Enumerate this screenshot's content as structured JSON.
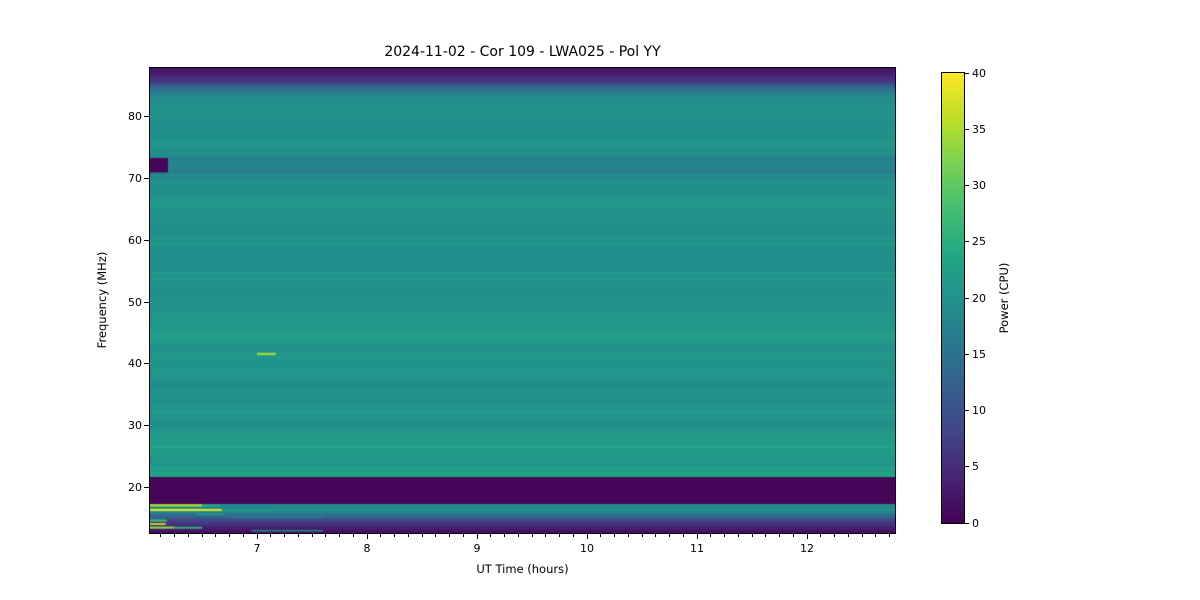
{
  "title": "2024-11-02 - Cor 109 - LWA025 - Pol YY",
  "xlabel": "UT Time (hours)",
  "ylabel": "Frequency (MHz)",
  "axes": {
    "x_min": 6.027,
    "x_max": 12.8,
    "y_min": 12.6,
    "y_max": 87.9,
    "x_major_ticks": [
      7,
      8,
      9,
      10,
      11,
      12
    ],
    "x_minor_step": 0.125,
    "y_major_ticks": [
      20,
      30,
      40,
      50,
      60,
      70,
      80
    ]
  },
  "colorbar": {
    "label": "Power (CPU)",
    "min": 0,
    "max": 40,
    "ticks": [
      0,
      5,
      10,
      15,
      20,
      25,
      30,
      35,
      40
    ]
  },
  "chart_data": {
    "type": "heatmap",
    "title": "2024-11-02 - Cor 109 - LWA025 - Pol YY",
    "xlabel": "UT Time (hours)",
    "ylabel": "Frequency (MHz)",
    "x_range_hours": [
      6.027,
      12.8
    ],
    "y_range_mhz": [
      12.6,
      87.9
    ],
    "value_label": "Power (CPU)",
    "value_range": [
      0,
      40
    ],
    "colormap": "viridis",
    "colormap_stops": [
      [
        0.0,
        "#440154"
      ],
      [
        0.1,
        "#482475"
      ],
      [
        0.2,
        "#414487"
      ],
      [
        0.3,
        "#355f8d"
      ],
      [
        0.4,
        "#2a788e"
      ],
      [
        0.5,
        "#21918c"
      ],
      [
        0.6,
        "#22a884"
      ],
      [
        0.7,
        "#44bf70"
      ],
      [
        0.8,
        "#7ad151"
      ],
      [
        0.9,
        "#bddf26"
      ],
      [
        1.0,
        "#fde725"
      ]
    ],
    "background_profile": [
      {
        "f0": 87.0,
        "f1": 87.9,
        "v0": 3.0,
        "v1": 1.5
      },
      {
        "f0": 85.7,
        "f1": 87.0,
        "v0": 7.0,
        "v1": 3.0
      },
      {
        "f0": 84.4,
        "f1": 85.7,
        "v0": 15.0,
        "v1": 7.0
      },
      {
        "f0": 83.2,
        "f1": 84.4,
        "v0": 19.3,
        "v1": 15.0
      },
      {
        "f0": 80.5,
        "f1": 83.2,
        "v0": 20.4,
        "v1": 19.3
      },
      {
        "f0": 78.5,
        "f1": 80.5,
        "v0": 19.3,
        "v1": 20.4
      },
      {
        "f0": 76.0,
        "f1": 78.5,
        "v0": 20.8,
        "v1": 19.3
      },
      {
        "f0": 73.5,
        "f1": 76.0,
        "v0": 19.5,
        "v1": 20.8
      },
      {
        "f0": 70.8,
        "f1": 73.5,
        "v0": 17.6,
        "v1": 17.6
      },
      {
        "f0": 68.5,
        "f1": 70.8,
        "v0": 19.8,
        "v1": 19.0
      },
      {
        "f0": 65.5,
        "f1": 68.5,
        "v0": 21.0,
        "v1": 19.8
      },
      {
        "f0": 62.5,
        "f1": 65.5,
        "v0": 19.6,
        "v1": 21.0
      },
      {
        "f0": 59.5,
        "f1": 62.5,
        "v0": 20.6,
        "v1": 19.6
      },
      {
        "f0": 57.0,
        "f1": 59.5,
        "v0": 19.2,
        "v1": 20.6
      },
      {
        "f0": 54.0,
        "f1": 57.0,
        "v0": 20.6,
        "v1": 19.2
      },
      {
        "f0": 51.0,
        "f1": 54.0,
        "v0": 19.8,
        "v1": 20.6
      },
      {
        "f0": 48.0,
        "f1": 51.0,
        "v0": 20.6,
        "v1": 19.8
      },
      {
        "f0": 46.0,
        "f1": 48.0,
        "v0": 21.3,
        "v1": 20.6
      },
      {
        "f0": 44.3,
        "f1": 46.0,
        "v0": 22.0,
        "v1": 21.3
      },
      {
        "f0": 42.5,
        "f1": 44.3,
        "v0": 20.3,
        "v1": 22.0
      },
      {
        "f0": 39.5,
        "f1": 42.5,
        "v0": 20.8,
        "v1": 20.3
      },
      {
        "f0": 36.5,
        "f1": 39.5,
        "v0": 19.7,
        "v1": 20.8
      },
      {
        "f0": 33.0,
        "f1": 36.5,
        "v0": 20.6,
        "v1": 19.7
      },
      {
        "f0": 30.0,
        "f1": 33.0,
        "v0": 20.0,
        "v1": 20.6
      },
      {
        "f0": 29.0,
        "f1": 30.0,
        "v0": 21.0,
        "v1": 20.0
      },
      {
        "f0": 26.5,
        "f1": 29.0,
        "v0": 22.6,
        "v1": 21.0
      },
      {
        "f0": 25.0,
        "f1": 26.5,
        "v0": 21.2,
        "v1": 22.6
      },
      {
        "f0": 23.5,
        "f1": 25.0,
        "v0": 20.6,
        "v1": 21.2
      },
      {
        "f0": 21.7,
        "f1": 23.5,
        "v0": 23.2,
        "v1": 21.5
      },
      {
        "f0": 17.3,
        "f1": 21.7,
        "v0": 0.6,
        "v1": 0.6
      },
      {
        "f0": 16.0,
        "f1": 17.3,
        "v0": 18.0,
        "v1": 19.0
      },
      {
        "f0": 14.2,
        "f1": 16.0,
        "v0": 6.0,
        "v1": 18.0
      },
      {
        "f0": 12.6,
        "f1": 14.2,
        "v0": 1.0,
        "v1": 6.0
      }
    ],
    "features": [
      {
        "name": "rfi-blank-72mhz",
        "t0": 6.027,
        "t1": 6.19,
        "f0": 71.0,
        "f1": 73.3,
        "v": 0.5
      },
      {
        "name": "burst-42mhz",
        "t0": 7.0,
        "t1": 7.17,
        "f0": 41.4,
        "f1": 41.8,
        "v": 34
      },
      {
        "name": "rfi-17mhz-bright",
        "t0": 6.027,
        "t1": 6.5,
        "f0": 16.9,
        "f1": 17.25,
        "v": 36
      },
      {
        "name": "rfi-17mhz-tail",
        "t0": 6.5,
        "t1": 6.66,
        "f0": 16.9,
        "f1": 17.2,
        "v": 25
      },
      {
        "name": "rfi-16mhz-bright",
        "t0": 6.027,
        "t1": 6.68,
        "f0": 16.15,
        "f1": 16.5,
        "v": 38
      },
      {
        "name": "rfi-16mhz-tail",
        "t0": 6.68,
        "t1": 7.2,
        "f0": 16.2,
        "f1": 16.45,
        "v": 22
      },
      {
        "name": "rfi-16mhz-faint",
        "t0": 7.2,
        "t1": 7.6,
        "f0": 16.2,
        "f1": 16.4,
        "v": 19
      },
      {
        "name": "rfi-15.6mhz",
        "t0": 6.45,
        "t1": 6.7,
        "f0": 15.5,
        "f1": 15.8,
        "v": 21
      },
      {
        "name": "rfi-15.2mhz-faint",
        "t0": 6.75,
        "t1": 7.6,
        "f0": 15.05,
        "f1": 15.3,
        "v": 17
      },
      {
        "name": "rfi-14.6mhz",
        "t0": 6.027,
        "t1": 6.18,
        "f0": 14.45,
        "f1": 14.8,
        "v": 27
      },
      {
        "name": "rfi-14mhz",
        "t0": 6.027,
        "t1": 6.17,
        "f0": 13.9,
        "f1": 14.2,
        "v": 36
      },
      {
        "name": "rfi-13.5mhz",
        "t0": 6.027,
        "t1": 6.25,
        "f0": 13.3,
        "f1": 13.65,
        "v": 33
      },
      {
        "name": "rfi-13.5mhz-tail",
        "t0": 6.25,
        "t1": 6.5,
        "f0": 13.3,
        "f1": 13.6,
        "v": 26
      },
      {
        "name": "rfi-13mhz-line",
        "t0": 6.95,
        "t1": 7.6,
        "f0": 12.85,
        "f1": 13.1,
        "v": 19
      }
    ]
  }
}
